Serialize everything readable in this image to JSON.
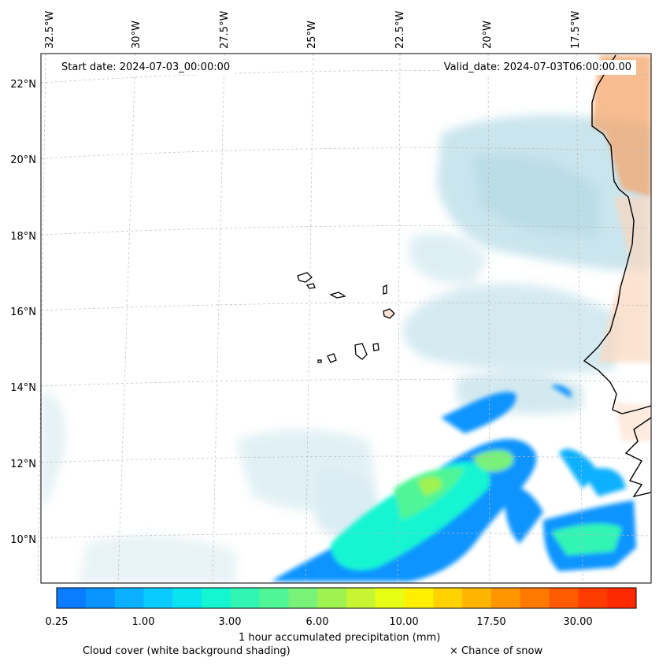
{
  "map": {
    "lon_labels": [
      "32.5°W",
      "30°W",
      "27.5°W",
      "25°W",
      "22.5°W",
      "20°W",
      "17.5°W"
    ],
    "lat_labels": [
      "22°N",
      "20°N",
      "18°N",
      "16°N",
      "14°N",
      "12°N",
      "10°N"
    ],
    "start_date": "Start date: 2024-07-03_00:00:00",
    "valid_date": "Valid_date: 2024-07-03T06:00:00.00"
  },
  "colorbar": {
    "colors": [
      "#0a7cff",
      "#0a94ff",
      "#0ab0ff",
      "#0acaff",
      "#0ae3f0",
      "#14f5d2",
      "#32f5b4",
      "#50f596",
      "#78f278",
      "#a0f250",
      "#c8f532",
      "#e6ff14",
      "#fff000",
      "#ffd200",
      "#ffb400",
      "#ff9600",
      "#ff7800",
      "#ff5a00",
      "#ff3c00",
      "#ff2a00"
    ],
    "ticks": [
      "0.25",
      "1.00",
      "3.00",
      "6.00",
      "10.00",
      "17.50",
      "30.00"
    ],
    "label": "1 hour accumulated precipitation (mm)"
  },
  "footer": {
    "cloud_cover": "Cloud cover (white background shading)",
    "snow": "× Chance of snow"
  },
  "colors": {
    "cloud": "#a8d4e0",
    "land_warm": "#f4a66b",
    "coast": "#000000"
  }
}
